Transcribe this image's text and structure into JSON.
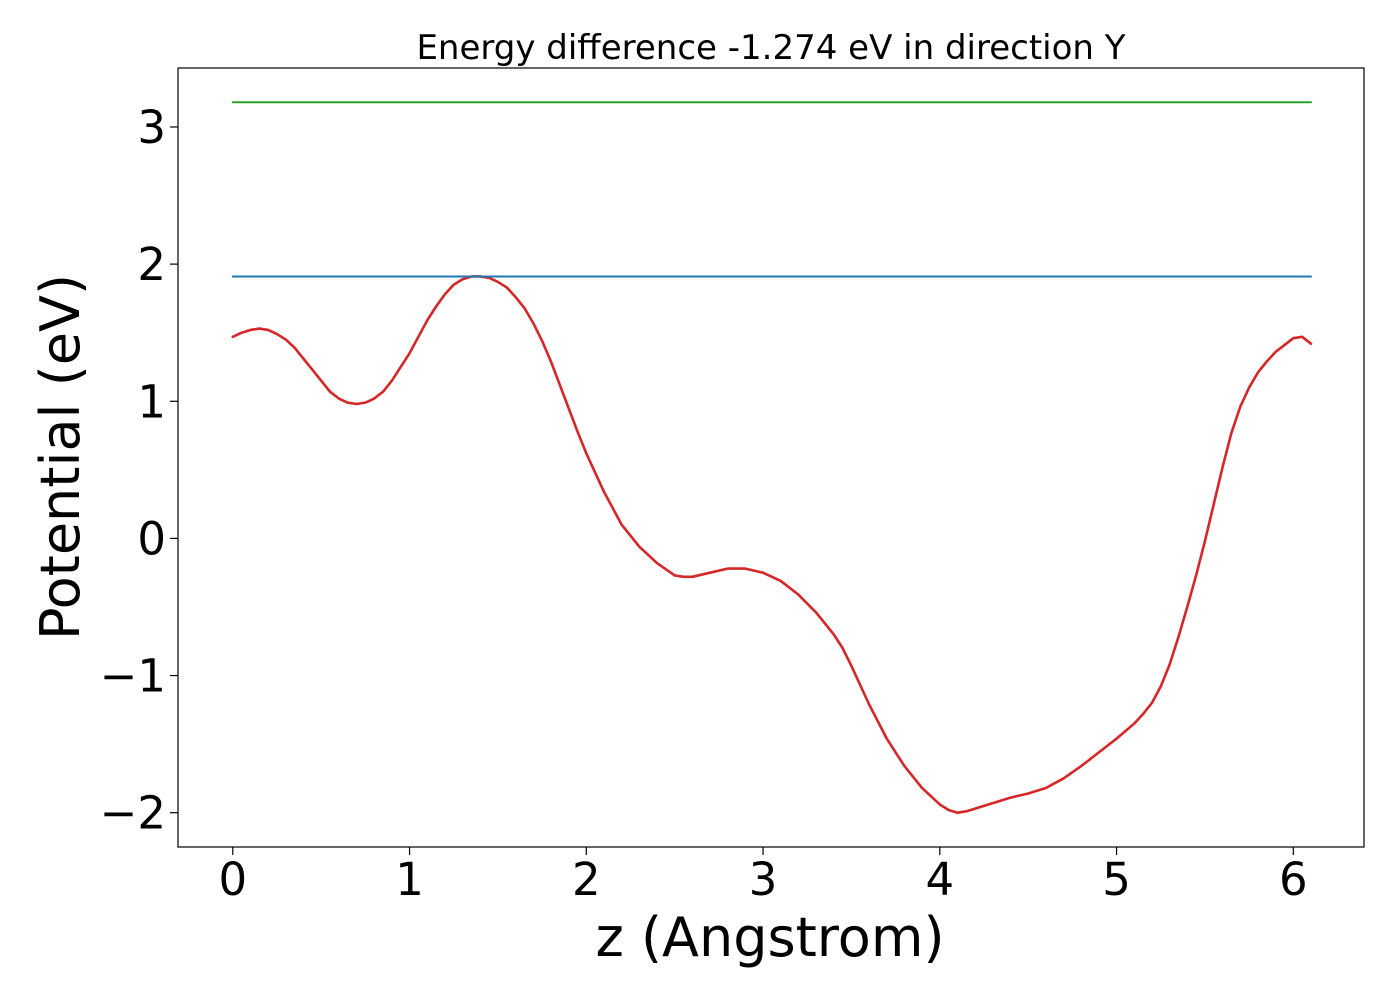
{
  "chart_data": {
    "type": "line",
    "title": "Energy difference -1.274 eV in direction Y",
    "xlabel": "z (Angstrom)",
    "ylabel": "Potential (eV)",
    "xlim": [
      -0.31,
      6.4
    ],
    "ylim": [
      -2.25,
      3.43
    ],
    "xticks": [
      0,
      1,
      2,
      3,
      4,
      5,
      6
    ],
    "xtick_labels": [
      "0",
      "1",
      "2",
      "3",
      "4",
      "5",
      "6"
    ],
    "yticks": [
      -2,
      -1,
      0,
      1,
      2,
      3
    ],
    "ytick_labels": [
      "−2",
      "−1",
      "0",
      "1",
      "2",
      "3"
    ],
    "grid": false,
    "series": [
      {
        "color": "#d62728",
        "x": [
          0.0,
          0.05,
          0.1,
          0.15,
          0.2,
          0.25,
          0.3,
          0.35,
          0.4,
          0.45,
          0.5,
          0.55,
          0.6,
          0.65,
          0.7,
          0.75,
          0.8,
          0.85,
          0.9,
          0.95,
          1.0,
          1.05,
          1.1,
          1.15,
          1.2,
          1.25,
          1.3,
          1.35,
          1.4,
          1.45,
          1.5,
          1.55,
          1.6,
          1.65,
          1.7,
          1.75,
          1.8,
          1.85,
          1.9,
          1.95,
          2.0,
          2.1,
          2.2,
          2.3,
          2.4,
          2.5,
          2.55,
          2.6,
          2.7,
          2.8,
          2.85,
          2.9,
          3.0,
          3.1,
          3.2,
          3.3,
          3.4,
          3.45,
          3.5,
          3.6,
          3.7,
          3.8,
          3.9,
          4.0,
          4.05,
          4.1,
          4.15,
          4.2,
          4.3,
          4.4,
          4.5,
          4.6,
          4.7,
          4.8,
          4.9,
          5.0,
          5.1,
          5.15,
          5.2,
          5.25,
          5.3,
          5.35,
          5.4,
          5.45,
          5.5,
          5.55,
          5.6,
          5.65,
          5.7,
          5.75,
          5.8,
          5.85,
          5.9,
          5.95,
          6.0,
          6.05,
          6.1
        ],
        "y": [
          1.47,
          1.5,
          1.52,
          1.53,
          1.52,
          1.49,
          1.45,
          1.39,
          1.31,
          1.23,
          1.15,
          1.07,
          1.02,
          0.99,
          0.98,
          0.99,
          1.02,
          1.07,
          1.15,
          1.25,
          1.35,
          1.47,
          1.59,
          1.69,
          1.78,
          1.85,
          1.89,
          1.91,
          1.91,
          1.9,
          1.87,
          1.83,
          1.76,
          1.68,
          1.57,
          1.44,
          1.29,
          1.12,
          0.95,
          0.78,
          0.62,
          0.34,
          0.1,
          -0.06,
          -0.18,
          -0.27,
          -0.28,
          -0.28,
          -0.25,
          -0.22,
          -0.22,
          -0.22,
          -0.25,
          -0.31,
          -0.41,
          -0.54,
          -0.7,
          -0.8,
          -0.93,
          -1.21,
          -1.46,
          -1.66,
          -1.82,
          -1.94,
          -1.98,
          -2.0,
          -1.99,
          -1.97,
          -1.93,
          -1.89,
          -1.86,
          -1.82,
          -1.75,
          -1.66,
          -1.56,
          -1.46,
          -1.35,
          -1.28,
          -1.2,
          -1.08,
          -0.92,
          -0.72,
          -0.5,
          -0.27,
          -0.02,
          0.25,
          0.52,
          0.77,
          0.96,
          1.1,
          1.21,
          1.29,
          1.36,
          1.41,
          1.46,
          1.47,
          1.42
        ]
      },
      {
        "color": "#1f77b4",
        "x": [
          0,
          6.1
        ],
        "y": [
          1.91,
          1.91
        ]
      },
      {
        "color": "#2ca02c",
        "x": [
          0,
          6.1
        ],
        "y": [
          3.18,
          3.18
        ]
      }
    ]
  }
}
